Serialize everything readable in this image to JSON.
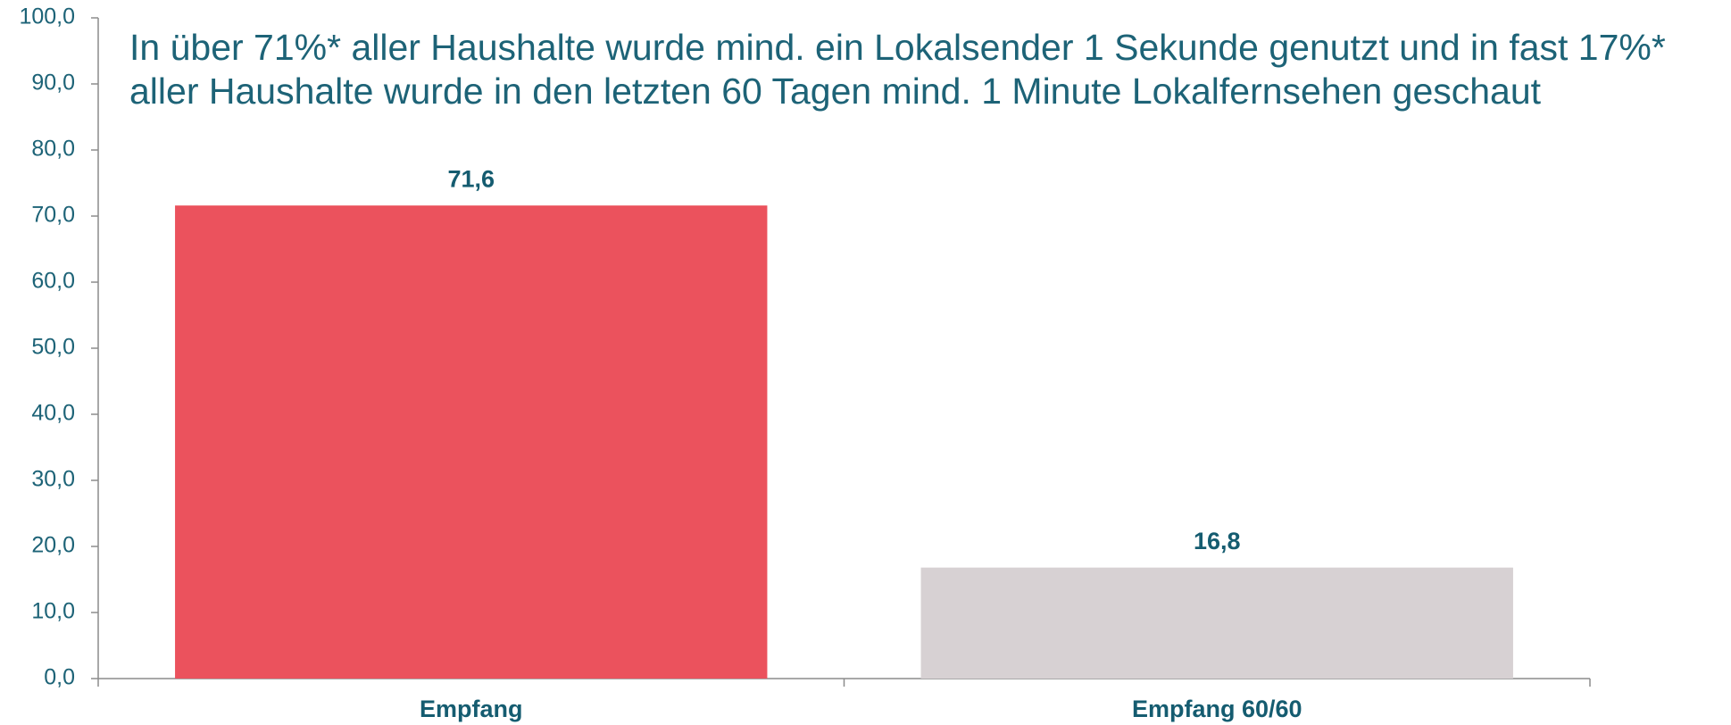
{
  "chart_data": {
    "type": "bar",
    "title": [
      "In über 71%* aller Haushalte wurde mind. ein Lokalsender 1 Sekunde genutzt und in fast 17%*",
      "aller Haushalte wurde in den letzten 60 Tagen mind. 1 Minute Lokalfernsehen geschaut"
    ],
    "categories": [
      "Empfang",
      "Empfang 60/60"
    ],
    "values": [
      71.6,
      16.8
    ],
    "value_labels": [
      "71,6",
      "16,8"
    ],
    "colors": [
      "#eb525d",
      "#d7d1d3"
    ],
    "ylim": [
      0,
      100
    ],
    "yticks": [
      {
        "value": 0,
        "label": "0,0"
      },
      {
        "value": 10,
        "label": "10,0"
      },
      {
        "value": 20,
        "label": "20,0"
      },
      {
        "value": 30,
        "label": "30,0"
      },
      {
        "value": 40,
        "label": "40,0"
      },
      {
        "value": 50,
        "label": "50,0"
      },
      {
        "value": 60,
        "label": "60,0"
      },
      {
        "value": 70,
        "label": "70,0"
      },
      {
        "value": 80,
        "label": "80,0"
      },
      {
        "value": 90,
        "label": "90,0"
      },
      {
        "value": 100,
        "label": "100,0"
      }
    ],
    "grid": false
  }
}
